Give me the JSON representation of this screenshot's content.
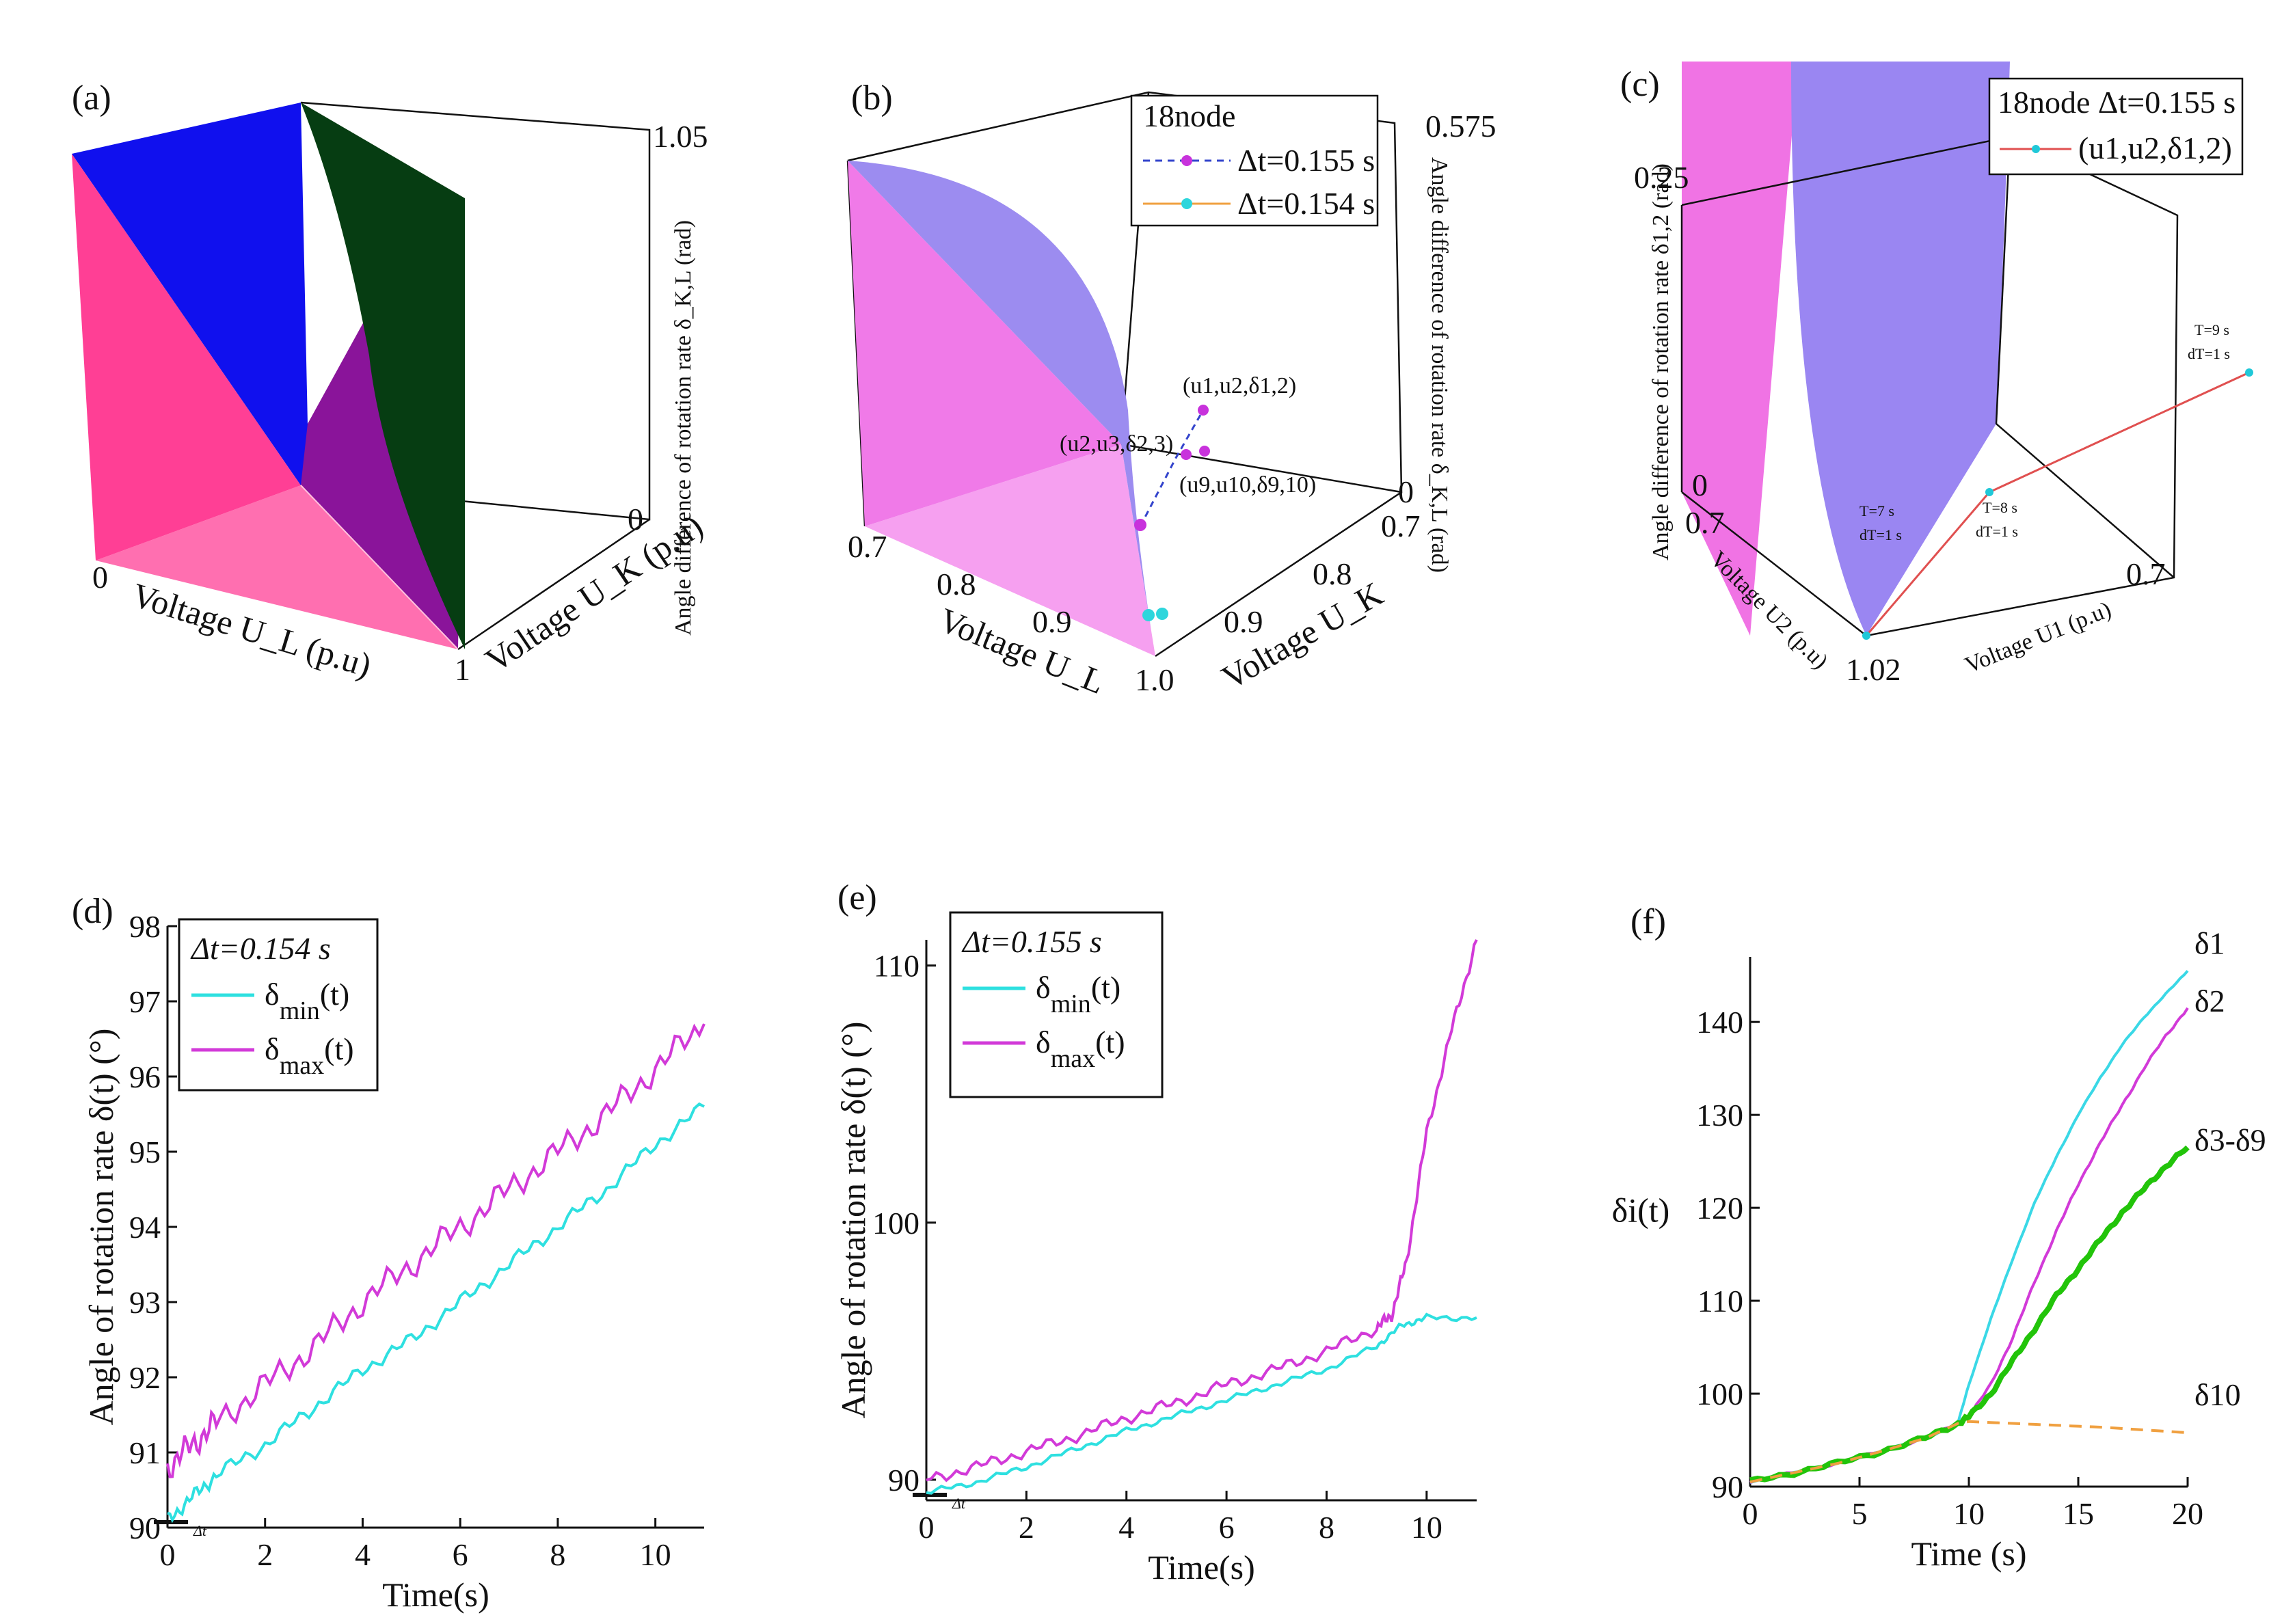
{
  "figure": {
    "panels": [
      {
        "id": "a",
        "label": "(a)",
        "type": "3d-surface",
        "xlabel": "Voltage U_L (p.u)",
        "ylabel": "Voltage U_K (p.u)",
        "zlabel": "Angle difference of rotation rate δ_K,L (rad)",
        "x_ticks": [
          "0",
          "1"
        ],
        "y_ticks": [
          "0"
        ],
        "z_ticks": [
          "1.05"
        ],
        "colors": {
          "left_face": "#ff3f95",
          "top_face": "#1010ee",
          "right_face": "#063d12",
          "floor": "#ff6fb0",
          "purple": "#8a149a"
        }
      },
      {
        "id": "b",
        "label": "(b)",
        "type": "3d-surface",
        "xlabel": "Voltage U_L",
        "ylabel": "Voltage U_K",
        "zlabel": "Angle difference of rotation rate δ_K,L (rad)",
        "x_ticks": [
          "0.7",
          "0.8",
          "0.9",
          "1.0"
        ],
        "y_ticks": [
          "0.7",
          "0.8",
          "0.9"
        ],
        "z_ticks": [
          "0.575",
          "0"
        ],
        "legend": {
          "title": "18node",
          "entries": [
            "Δt=0.155 s",
            "Δt=0.154 s"
          ]
        },
        "annotations": [
          "(u1,u2,δ1,2)",
          "(u2,u3,δ2,3)",
          "(u9,u10,δ9,10)"
        ],
        "colors": {
          "surface": "#9c8cf0",
          "left_face": "#f07ae8",
          "floor": "#f6a0f0",
          "series1": "#c832dc",
          "series2": "#2ed6dc",
          "dash": "#3344cc"
        }
      },
      {
        "id": "c",
        "label": "(c)",
        "type": "3d-surface",
        "xlabel": "Voltage U1 (p.u)",
        "ylabel": "Voltage U2 (p.u)",
        "zlabel": "Angle difference of rotation rate δ1,2 (rad)",
        "x_ticks": [
          "0.7"
        ],
        "y_ticks": [
          "0.7",
          "1.02"
        ],
        "z_ticks": [
          "0.25",
          "0"
        ],
        "legend": {
          "title": "18node Δt=0.155 s",
          "entries": [
            "(u1,u2,δ1,2)"
          ]
        },
        "annotations": [
          {
            "t": "T=7 s",
            "dt": "dT=1 s"
          },
          {
            "t": "T=8 s",
            "dt": "dT=1 s"
          },
          {
            "t": "T=9 s",
            "dt": "dT=1 s"
          }
        ],
        "colors": {
          "surface": "#9a86f2",
          "left_face": "#f073e4",
          "line": "#e05050",
          "marker": "#20c8d8"
        }
      }
    ]
  },
  "chart_data": [
    {
      "id": "d",
      "label": "(d)",
      "type": "line",
      "title": "",
      "xlabel": "Time(s)",
      "ylabel": "Angle of rotation rate δ(t) (°)",
      "xlim": [
        0,
        11
      ],
      "ylim": [
        90,
        98
      ],
      "x_ticks": [
        0,
        2,
        4,
        6,
        8,
        10
      ],
      "y_ticks": [
        90,
        91,
        92,
        93,
        94,
        95,
        96,
        97,
        98
      ],
      "x_tick_labels": [
        "0",
        "2",
        "4",
        "6",
        "8",
        "10"
      ],
      "y_tick_labels": [
        "90",
        "91",
        "92",
        "93",
        "94",
        "95",
        "96",
        "97",
        "98"
      ],
      "legend_title": "Δt=0.154 s",
      "dt_mark": "Δt",
      "series": [
        {
          "name": "δmin(t)",
          "name_base": "δ",
          "name_sub": "min",
          "name_tail": "(t)",
          "color": "#2ee0e0",
          "x": [
            0,
            0.5,
            1,
            2,
            3,
            4,
            5,
            6,
            7,
            8,
            9,
            10,
            11
          ],
          "y": [
            90.1,
            90.4,
            90.7,
            91.1,
            91.6,
            92.1,
            92.5,
            93.0,
            93.5,
            94.0,
            94.5,
            95.1,
            95.6
          ]
        },
        {
          "name": "δmax(t)",
          "name_base": "δ",
          "name_sub": "max",
          "name_tail": "(t)",
          "color": "#d23ad8",
          "x": [
            0,
            0.5,
            1,
            2,
            3,
            4,
            5,
            6,
            7,
            8,
            9,
            10,
            11
          ],
          "y": [
            90.8,
            91.1,
            91.4,
            91.9,
            92.4,
            93.0,
            93.5,
            94.0,
            94.5,
            95.0,
            95.5,
            96.1,
            96.7
          ]
        }
      ]
    },
    {
      "id": "e",
      "label": "(e)",
      "type": "line",
      "title": "",
      "xlabel": "Time(s)",
      "ylabel": "Angle of rotation rate δ(t) (°)",
      "xlim": [
        0,
        11
      ],
      "ylim": [
        89.2,
        111
      ],
      "x_ticks": [
        0,
        2,
        4,
        6,
        8,
        10
      ],
      "y_ticks": [
        90,
        100,
        110
      ],
      "x_tick_labels": [
        "0",
        "2",
        "4",
        "6",
        "8",
        "10"
      ],
      "y_tick_labels": [
        "90",
        "100",
        "110"
      ],
      "legend_title": "Δt=0.155 s",
      "dt_mark": "Δt",
      "series": [
        {
          "name": "δmin(t)",
          "name_base": "δ",
          "name_sub": "min",
          "name_tail": "(t)",
          "color": "#2ee0e0",
          "x": [
            0,
            1,
            2,
            3,
            4,
            5,
            6,
            7,
            8,
            9,
            9.5,
            10,
            11
          ],
          "y": [
            89.5,
            89.9,
            90.5,
            91.2,
            91.9,
            92.5,
            93.1,
            93.7,
            94.3,
            95.2,
            96.0,
            96.3,
            96.3
          ]
        },
        {
          "name": "δmax(t)",
          "name_base": "δ",
          "name_sub": "max",
          "name_tail": "(t)",
          "color": "#d23ad8",
          "x": [
            0,
            1,
            2,
            3,
            4,
            5,
            6,
            7,
            8,
            9,
            9.3,
            9.6,
            10,
            10.5,
            11
          ],
          "y": [
            90.0,
            90.5,
            91.1,
            91.7,
            92.4,
            93.0,
            93.7,
            94.3,
            95.0,
            95.9,
            96.4,
            98.5,
            103.5,
            107.5,
            111
          ]
        }
      ]
    },
    {
      "id": "f",
      "label": "(f)",
      "type": "line",
      "title": "",
      "xlabel": "Time (s)",
      "ylabel": "δi(t)",
      "xlim": [
        0,
        20
      ],
      "ylim": [
        90,
        147
      ],
      "x_ticks": [
        0,
        5,
        10,
        15,
        20
      ],
      "y_ticks": [
        90,
        100,
        110,
        120,
        130,
        140
      ],
      "x_tick_labels": [
        "0",
        "5",
        "10",
        "15",
        "20"
      ],
      "y_tick_labels": [
        "90",
        "100",
        "110",
        "120",
        "130",
        "140"
      ],
      "series": [
        {
          "name": "δ1",
          "color": "#3ad8e6",
          "dash": false,
          "x": [
            0,
            2,
            4,
            6,
            8,
            9.5,
            10,
            11,
            12,
            13,
            14,
            15,
            16,
            17,
            18,
            19,
            20
          ],
          "y": [
            90.5,
            91.5,
            92.5,
            93.8,
            95.2,
            96.8,
            101,
            108,
            114.5,
            120.5,
            125.5,
            130,
            134,
            137.5,
            140.5,
            143,
            145.5
          ]
        },
        {
          "name": "δ2",
          "color": "#d23ad8",
          "dash": false,
          "x": [
            0,
            2,
            4,
            6,
            8,
            9.5,
            10,
            11,
            12,
            13,
            14,
            15,
            16,
            17,
            18,
            19,
            20
          ],
          "y": [
            90.5,
            91.5,
            92.5,
            93.8,
            95.2,
            96.8,
            97.5,
            101,
            106,
            112,
            117.5,
            122.5,
            127,
            131,
            135,
            138.5,
            141.5
          ]
        },
        {
          "name": "δ3-δ9",
          "color": "#22c40a",
          "dash": false,
          "x": [
            0,
            2,
            4,
            6,
            8,
            9.5,
            10,
            11,
            12,
            13,
            14,
            15,
            16,
            17,
            18,
            19,
            20
          ],
          "y": [
            90.5,
            91.5,
            92.5,
            93.8,
            95.2,
            96.8,
            97.5,
            100,
            103.5,
            107,
            110.5,
            113.5,
            116.5,
            119.5,
            122,
            124.5,
            126.5
          ]
        },
        {
          "name": "δ10",
          "color": "#f0a040",
          "dash": true,
          "x": [
            0,
            2,
            4,
            6,
            8,
            9.5,
            10,
            12,
            14,
            16,
            18,
            20
          ],
          "y": [
            90.5,
            91.5,
            92.5,
            93.8,
            95.2,
            96.8,
            97.0,
            96.8,
            96.6,
            96.4,
            96.1,
            95.8
          ]
        }
      ]
    }
  ]
}
